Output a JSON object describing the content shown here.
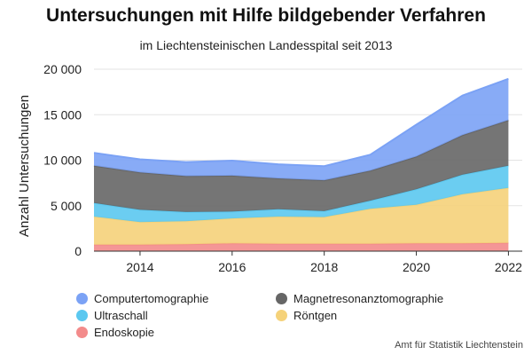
{
  "title": "Untersuchungen mit Hilfe bildgebender Verfahren",
  "subtitle": "im Liechtensteinischen Landesspital seit 2013",
  "source": "Amt für Statistik Liechtenstein",
  "chart_data": {
    "type": "area",
    "stacked": true,
    "title": "Untersuchungen mit Hilfe bildgebender Verfahren",
    "subtitle": "im Liechtensteinischen Landesspital seit 2013",
    "ylabel": "Anzahl Untersuchungen",
    "xlabel": "",
    "x": [
      2013,
      2014,
      2015,
      2016,
      2017,
      2018,
      2019,
      2020,
      2021,
      2022
    ],
    "xticks": [
      2014,
      2016,
      2018,
      2020,
      2022
    ],
    "xlim": [
      2013,
      2022.3
    ],
    "yticks": [
      0,
      5000,
      10000,
      15000,
      20000
    ],
    "ytick_labels": [
      "0",
      "5 000",
      "10 000",
      "15 000",
      "20 000"
    ],
    "ylim": [
      0,
      20000
    ],
    "grid": "horizontal",
    "legend_position": "bottom",
    "series": [
      {
        "name": "Endoskopie",
        "color": "#f38b8b",
        "values": [
          700,
          700,
          750,
          850,
          800,
          800,
          800,
          850,
          850,
          900
        ]
      },
      {
        "name": "Röntgen",
        "color": "#f5d27a",
        "values": [
          3100,
          2500,
          2550,
          2750,
          3000,
          2950,
          3850,
          4250,
          5400,
          6050
        ]
      },
      {
        "name": "Ultraschall",
        "color": "#5bc8f0",
        "values": [
          1500,
          1350,
          1000,
          750,
          800,
          650,
          900,
          1700,
          2150,
          2450
        ]
      },
      {
        "name": "Magnetresonanztomographie",
        "color": "#666666",
        "values": [
          4100,
          4100,
          3950,
          3950,
          3400,
          3400,
          3300,
          3600,
          4350,
          5000
        ]
      },
      {
        "name": "Computertomographie",
        "color": "#7ba2f5",
        "values": [
          1400,
          1450,
          1550,
          1650,
          1550,
          1550,
          1750,
          3500,
          4350,
          4550
        ]
      }
    ],
    "legend_order": [
      "Computertomographie",
      "Magnetresonanztomographie",
      "Ultraschall",
      "Röntgen",
      "Endoskopie"
    ]
  }
}
